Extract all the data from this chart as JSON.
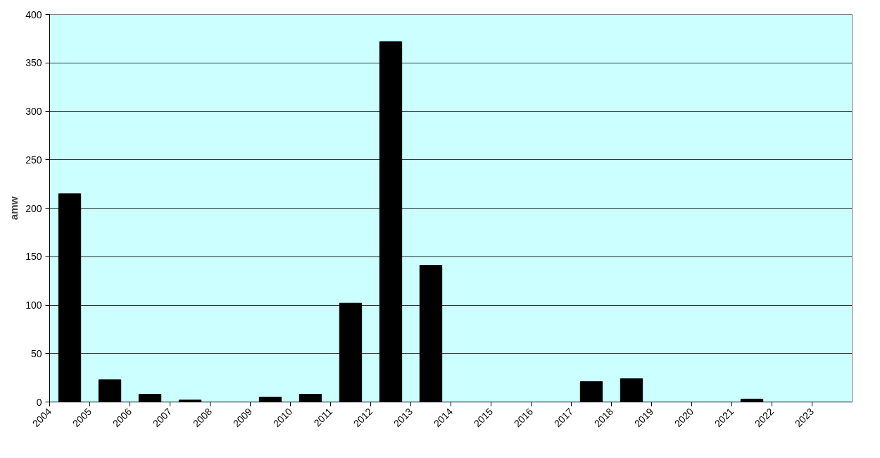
{
  "chart_data": {
    "type": "bar",
    "ylabel": "amw",
    "categories": [
      "2004",
      "2005",
      "2006",
      "2007",
      "2008",
      "2009",
      "2010",
      "2011",
      "2012",
      "2013",
      "2014",
      "2015",
      "2016",
      "2017",
      "2018",
      "2019",
      "2020",
      "2021",
      "2022",
      "2023"
    ],
    "values": [
      215,
      23,
      8,
      2,
      0,
      5,
      8,
      102,
      372,
      141,
      0,
      0,
      0,
      21,
      24,
      0,
      0,
      3,
      0,
      0
    ],
    "color": "#000000",
    "ylim": [
      0,
      400
    ],
    "yticks": [
      0,
      50,
      100,
      150,
      200,
      250,
      300,
      350,
      400
    ],
    "grid": "y"
  }
}
